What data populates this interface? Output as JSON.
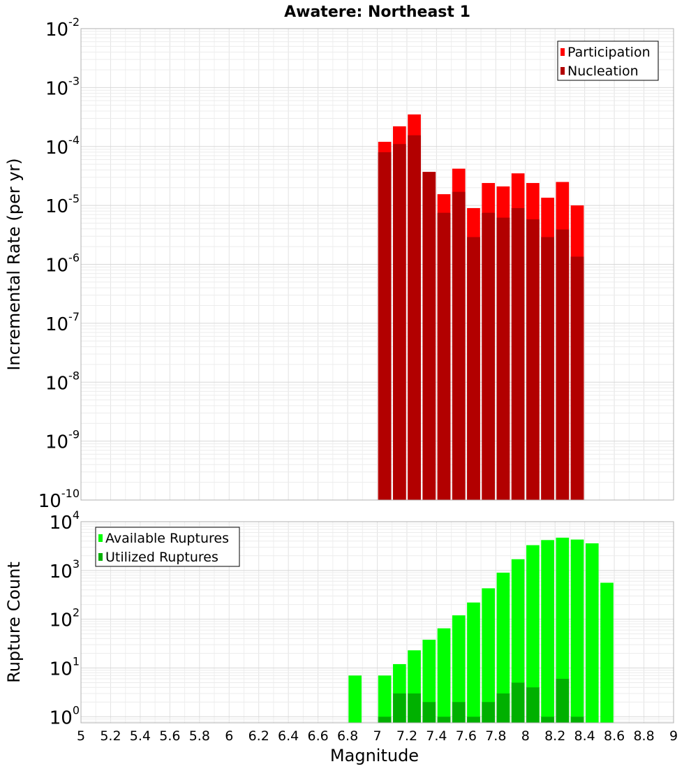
{
  "chart_data": [
    {
      "type": "bar",
      "title": "Awatere: Northeast 1",
      "xlabel": "Magnitude",
      "ylabel": "Incremental Rate (per yr)",
      "yscale": "log",
      "ylim": [
        1e-10,
        0.01
      ],
      "xlim": [
        5,
        9
      ],
      "grid": true,
      "legend_position": "top-right",
      "ytick_labels": [
        {
          "base": "10",
          "exp": "-10",
          "value": 1e-10
        },
        {
          "base": "10",
          "exp": "-9",
          "value": 1e-09
        },
        {
          "base": "10",
          "exp": "-8",
          "value": 1e-08
        },
        {
          "base": "10",
          "exp": "-7",
          "value": 1e-07
        },
        {
          "base": "10",
          "exp": "-6",
          "value": 1e-06
        },
        {
          "base": "10",
          "exp": "-5",
          "value": 1e-05
        },
        {
          "base": "10",
          "exp": "-4",
          "value": 0.0001
        },
        {
          "base": "10",
          "exp": "-3",
          "value": 0.001
        },
        {
          "base": "10",
          "exp": "-2",
          "value": 0.01
        }
      ],
      "x": [
        7.05,
        7.15,
        7.25,
        7.35,
        7.45,
        7.55,
        7.65,
        7.75,
        7.85,
        7.95,
        8.05,
        8.15,
        8.25,
        8.35
      ],
      "series": [
        {
          "name": "Participation",
          "color": "#ff0000",
          "values": [
            0.00012,
            0.00022,
            0.00035,
            3.7e-05,
            1.55e-05,
            4.2e-05,
            9e-06,
            2.4e-05,
            2.1e-05,
            3.5e-05,
            2.4e-05,
            1.35e-05,
            2.5e-05,
            1e-05
          ]
        },
        {
          "name": "Nucleation",
          "color": "#b20000",
          "values": [
            8e-05,
            0.00011,
            0.000155,
            3.7e-05,
            7.5e-06,
            1.7e-05,
            2.9e-06,
            7.5e-06,
            6.2e-06,
            9e-06,
            5.8e-06,
            2.9e-06,
            3.9e-06,
            1.35e-06
          ]
        }
      ]
    },
    {
      "type": "bar",
      "xlabel": "Magnitude",
      "ylabel": "Rupture Count",
      "yscale": "log",
      "ylim": [
        0.75,
        10000
      ],
      "xlim": [
        5,
        9
      ],
      "grid": true,
      "legend_position": "top-left",
      "ytick_labels": [
        {
          "base": "10",
          "exp": "0",
          "value": 1
        },
        {
          "base": "10",
          "exp": "1",
          "value": 10
        },
        {
          "base": "10",
          "exp": "2",
          "value": 100
        },
        {
          "base": "10",
          "exp": "3",
          "value": 1000
        },
        {
          "base": "10",
          "exp": "4",
          "value": 10000
        }
      ],
      "xtick_labels": [
        "5",
        "5.2",
        "5.4",
        "5.6",
        "5.8",
        "6",
        "6.2",
        "6.4",
        "6.6",
        "6.8",
        "7",
        "7.2",
        "7.4",
        "7.6",
        "7.8",
        "8",
        "8.2",
        "8.4",
        "8.6",
        "8.8",
        "9"
      ],
      "x": [
        6.85,
        7.05,
        7.15,
        7.25,
        7.35,
        7.45,
        7.55,
        7.65,
        7.75,
        7.85,
        7.95,
        8.05,
        8.15,
        8.25,
        8.35,
        8.45,
        8.55
      ],
      "series": [
        {
          "name": "Available Ruptures",
          "color": "#00ff00",
          "values": [
            7,
            7,
            12,
            23,
            38,
            65,
            120,
            220,
            430,
            900,
            1700,
            3300,
            4200,
            4700,
            4300,
            3600,
            560
          ]
        },
        {
          "name": "Utilized Ruptures",
          "color": "#00b000",
          "values": [
            null,
            1,
            3,
            3,
            2,
            1,
            2,
            1,
            2,
            3,
            5,
            4,
            1,
            6,
            1,
            null,
            null
          ]
        }
      ]
    }
  ]
}
